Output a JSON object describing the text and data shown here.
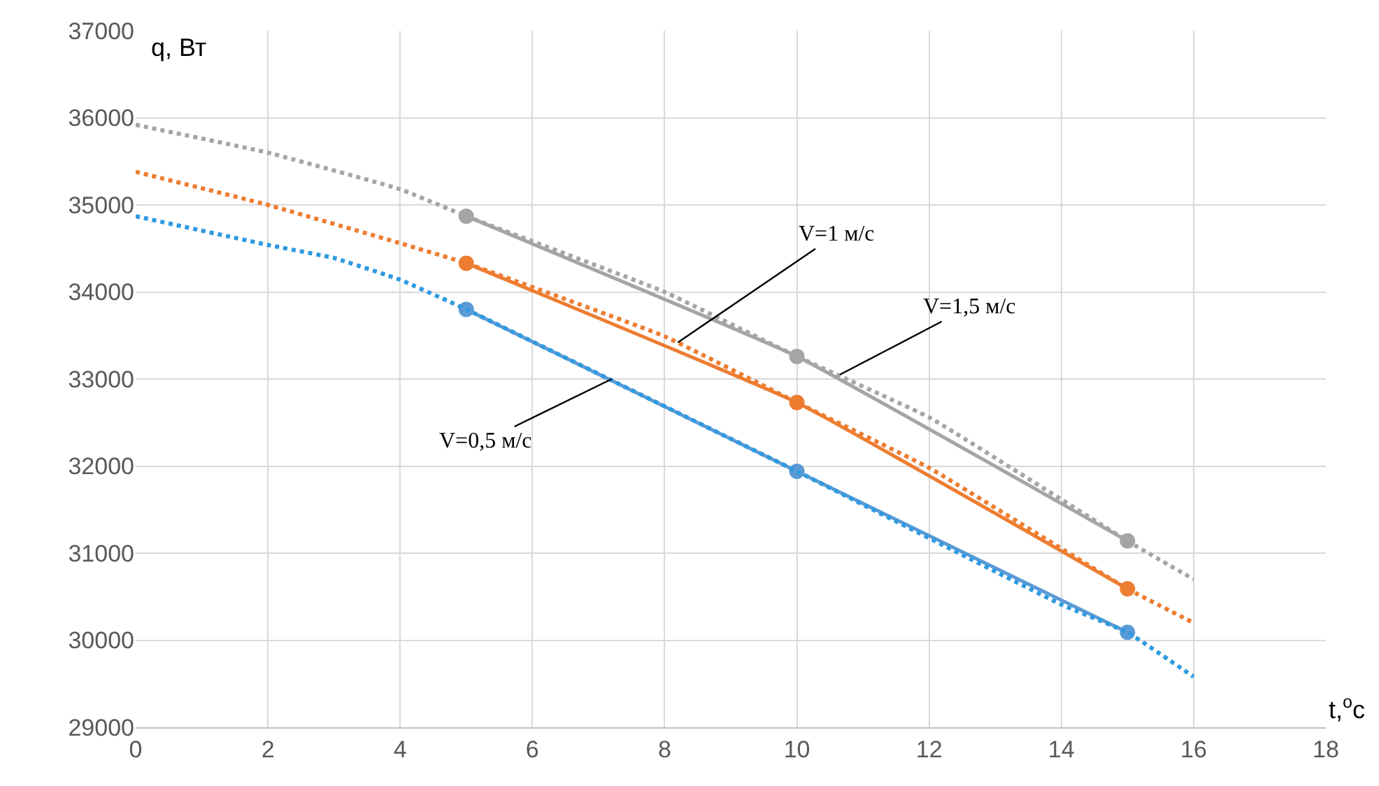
{
  "chart_data": {
    "type": "line",
    "xlabel": "t,$^{o}$c",
    "ylabel": "q, Вт",
    "xlim": [
      0,
      18
    ],
    "xticks": [
      0,
      2,
      4,
      6,
      8,
      10,
      12,
      14,
      16,
      18
    ],
    "ylim": [
      29000,
      37000
    ],
    "yticks": [
      29000,
      30000,
      31000,
      32000,
      33000,
      34000,
      35000,
      36000,
      37000
    ],
    "grid": true,
    "series": [
      {
        "line_style": "solid",
        "marker": "circle",
        "color": "#a5a5a5",
        "x": [
          5,
          10,
          15
        ],
        "values": [
          34870,
          33260,
          31140
        ]
      },
      {
        "line_style": "solid",
        "marker": "circle",
        "color": "#ed7d31",
        "x": [
          5,
          10,
          15
        ],
        "values": [
          34330,
          32730,
          30590
        ]
      },
      {
        "line_style": "solid",
        "marker": "circle",
        "color": "#5b9bd5",
        "x": [
          5,
          10,
          15
        ],
        "values": [
          33800,
          31940,
          30090
        ]
      },
      {
        "line_style": "dotted",
        "marker": "none",
        "color": "#a5a5a5",
        "x": [
          0,
          2,
          4,
          5,
          8,
          10,
          12,
          15,
          16
        ],
        "values": [
          35920,
          35600,
          35180,
          34870,
          34000,
          33260,
          32560,
          31140,
          30700
        ]
      },
      {
        "line_style": "dotted",
        "marker": "none",
        "color": "#ed7d31",
        "x": [
          0,
          2,
          4,
          5,
          8,
          10,
          12,
          15,
          16
        ],
        "values": [
          35380,
          35000,
          34560,
          34330,
          33490,
          32730,
          31980,
          30590,
          30200
        ]
      },
      {
        "line_style": "dotted",
        "marker": "none",
        "color": "#2e9ae0",
        "x": [
          0,
          2,
          3,
          4,
          5,
          10,
          14,
          15,
          16
        ],
        "values": [
          34870,
          34540,
          34390,
          34140,
          33800,
          31940,
          30410,
          30090,
          29580
        ]
      }
    ],
    "annotations": [
      {
        "text": "V=1 м/с",
        "x": 8.2,
        "y": 33420
      },
      {
        "text": "V=1,5 м/с",
        "x": 10.65,
        "y": 33050
      },
      {
        "text": "V=0,5 м/с",
        "x": 7.2,
        "y": 33000
      }
    ]
  }
}
